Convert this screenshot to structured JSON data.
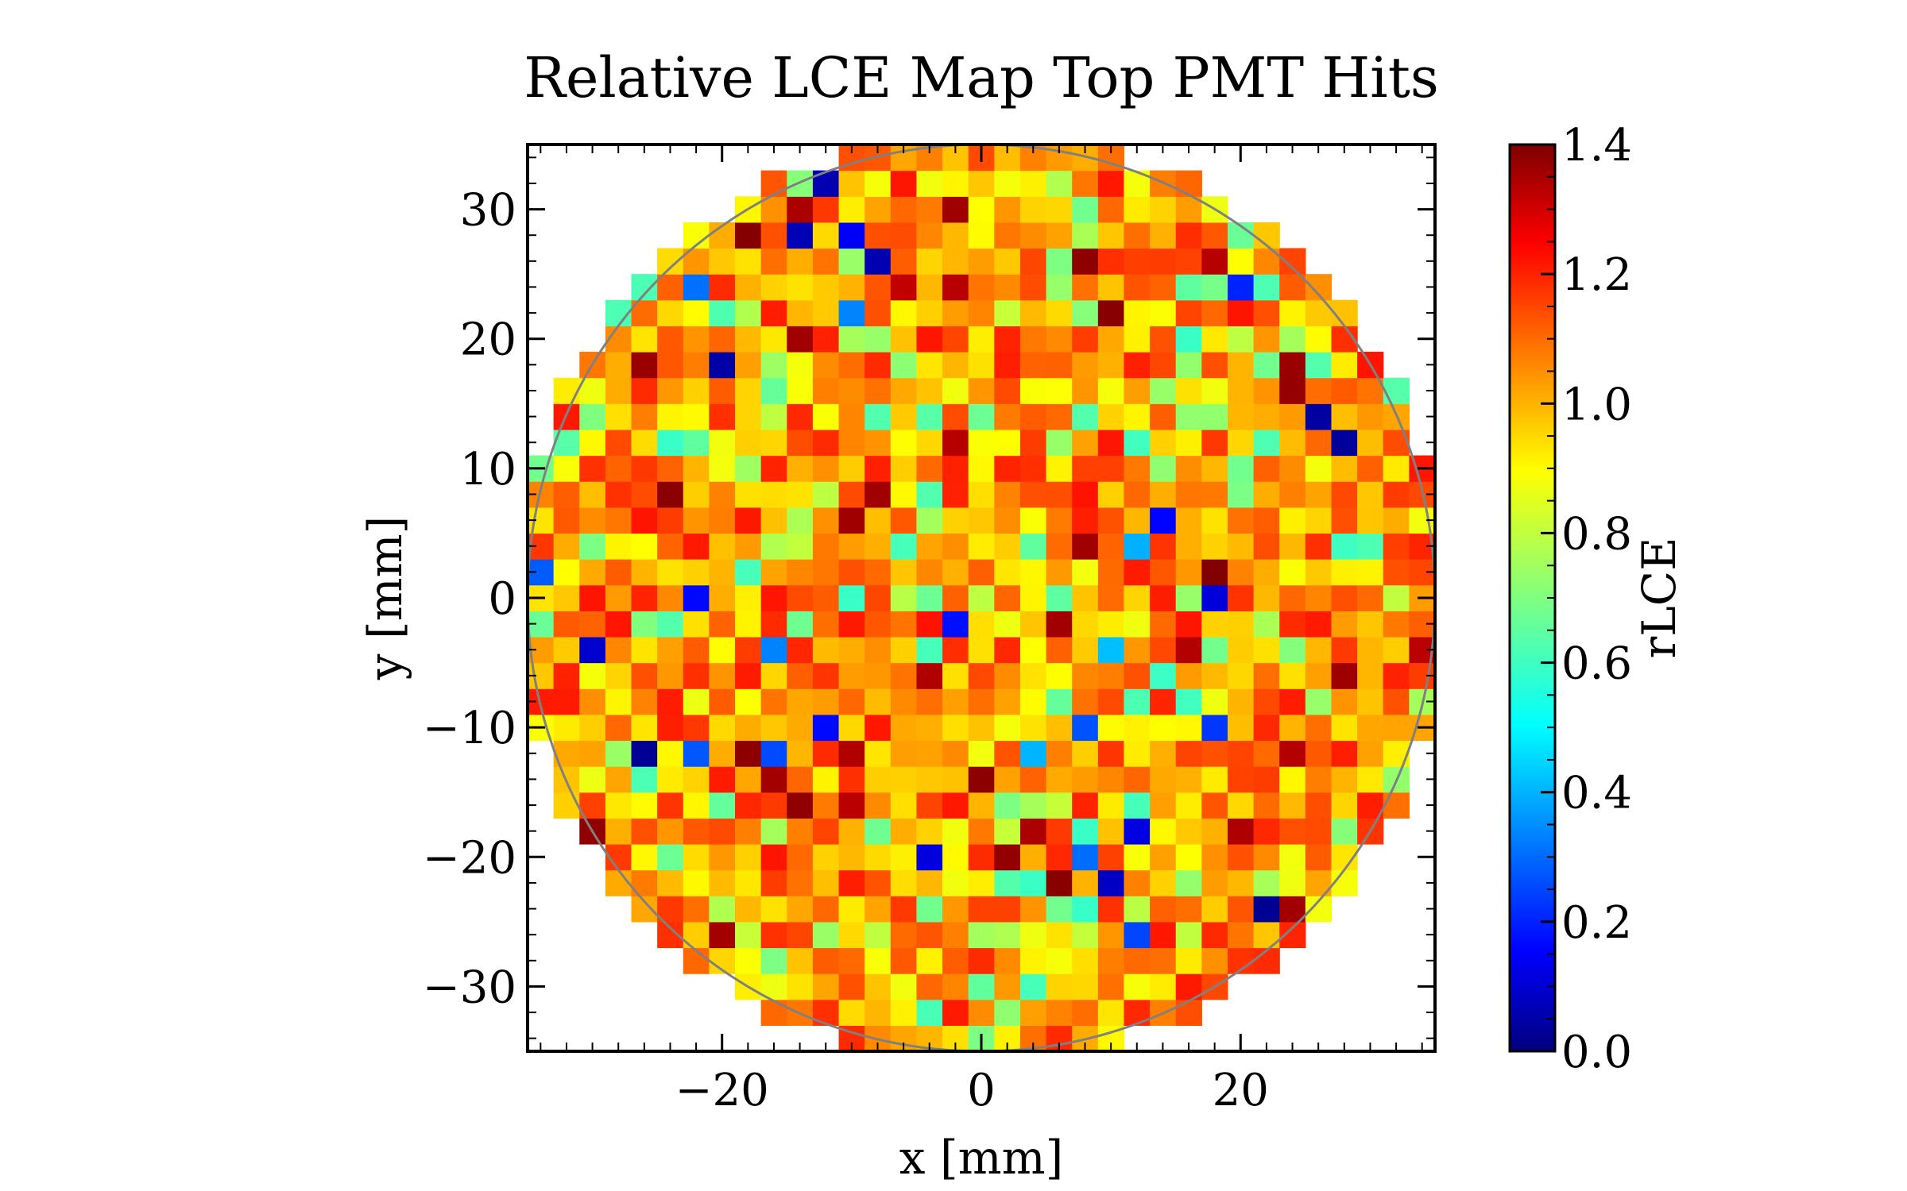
{
  "chart_data": {
    "type": "heatmap",
    "title": "Relative LCE Map Top PMT Hits",
    "xlabel": "x [mm]",
    "ylabel": "y [mm]",
    "xlim": [
      -35,
      35
    ],
    "ylim": [
      -35,
      35
    ],
    "x_ticks": [
      -20,
      0,
      20
    ],
    "x_tick_labels": [
      "−20",
      "0",
      "20"
    ],
    "y_ticks": [
      -30,
      -20,
      -10,
      0,
      10,
      20,
      30
    ],
    "y_tick_labels": [
      "−30",
      "−20",
      "−10",
      "0",
      "10",
      "20",
      "30"
    ],
    "grid": false,
    "bins": {
      "nx": 35,
      "ny": 35,
      "x_range": [
        -35,
        35
      ],
      "y_range": [
        -35,
        35
      ]
    },
    "data_region": "circle of radius 35 mm centered at (0, 0)",
    "value_range": [
      0.0,
      1.4
    ],
    "value_distribution": "typical 0.85-1.15, occasional 0.6-1.4, rare outliers near 0.0",
    "circle_overlay": {
      "center": [
        0,
        0
      ],
      "radius": 35,
      "color": "#808080"
    },
    "colorbar": {
      "label": "rLCE",
      "colormap": "jet",
      "range": [
        0.0,
        1.4
      ],
      "ticks": [
        0.0,
        0.2,
        0.4,
        0.6,
        0.8,
        1.0,
        1.2,
        1.4
      ],
      "tick_labels": [
        "0.0",
        "0.2",
        "0.4",
        "0.6",
        "0.8",
        "1.0",
        "1.2",
        "1.4"
      ],
      "placement": "right"
    }
  }
}
